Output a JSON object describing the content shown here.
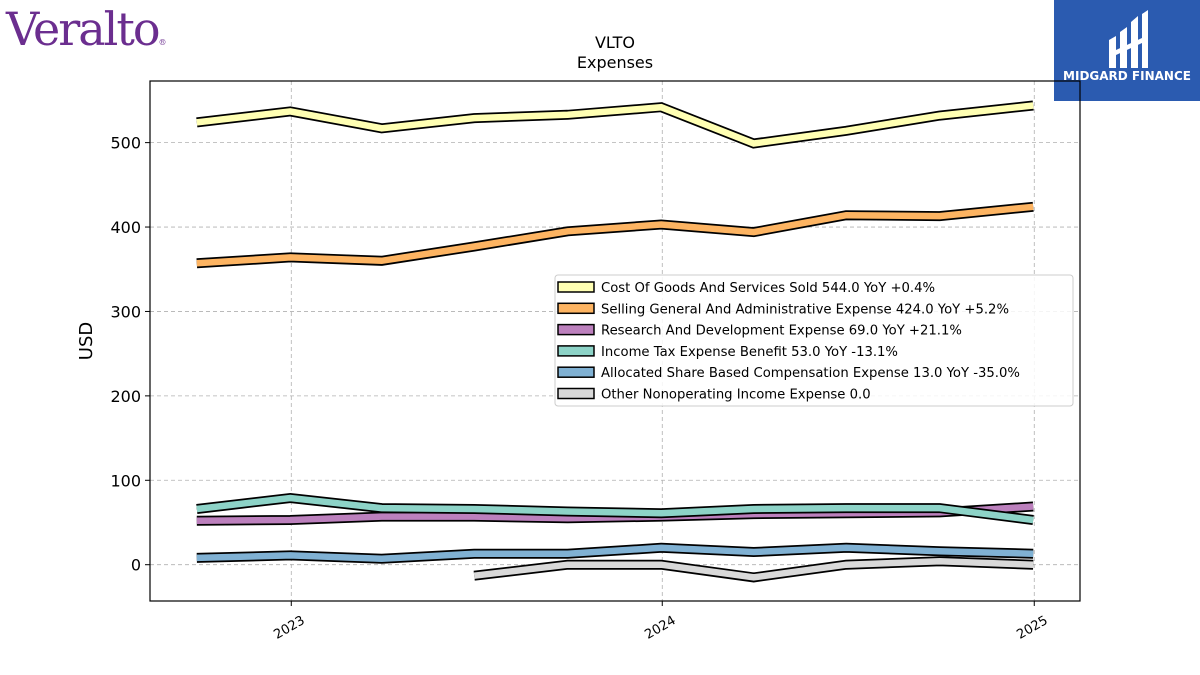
{
  "logos": {
    "left_text": "Veralto",
    "left_tm": "®",
    "right_text": "MIDGARD FINANCE"
  },
  "colors": {
    "brand_left": "#6b2e8f",
    "brand_right_bg": "#2b5bb0"
  },
  "chart_data": {
    "type": "line",
    "title": "VLTO",
    "subtitle": "Expenses",
    "ylabel": "USD",
    "xlabel": "",
    "x_ticks": [
      "2023",
      "2024",
      "2025"
    ],
    "y_ticks": [
      0,
      100,
      200,
      300,
      400,
      500
    ],
    "ylim": [
      -43,
      573
    ],
    "xlim": [
      "2022-08-15",
      "2025-02-15"
    ],
    "grid": true,
    "legend_position": "center-right",
    "x": [
      "2022-09-30",
      "2022-12-31",
      "2023-03-31",
      "2023-06-30",
      "2023-09-30",
      "2023-12-31",
      "2024-03-31",
      "2024-06-30",
      "2024-09-30",
      "2024-12-31"
    ],
    "series": [
      {
        "name": "Cost Of Goods And Services Sold",
        "legend_value": "544.0",
        "legend_yoy": "YoY +0.4%",
        "color": "#ffffb3",
        "values": [
          524,
          537,
          517,
          529,
          533,
          542,
          499,
          514,
          532,
          544
        ]
      },
      {
        "name": "Selling General And Administrative Expense",
        "legend_value": "424.0",
        "legend_yoy": "YoY +5.2%",
        "color": "#fdb462",
        "values": [
          357,
          364,
          360,
          377,
          395,
          403,
          394,
          414,
          413,
          424
        ]
      },
      {
        "name": "Research And Development Expense",
        "legend_value": "69.0",
        "legend_yoy": "YoY +21.1%",
        "color": "#bc80bd",
        "values": [
          52,
          53,
          57,
          57,
          55,
          57,
          60,
          61,
          62,
          69
        ]
      },
      {
        "name": "Income Tax Expense Benefit",
        "legend_value": "53.0",
        "legend_yoy": "YoY -13.1%",
        "color": "#8dd3c7",
        "values": [
          66,
          79,
          67,
          66,
          63,
          61,
          66,
          67,
          67,
          53
        ]
      },
      {
        "name": "Allocated Share Based Compensation Expense",
        "legend_value": "13.0",
        "legend_yoy": "YoY -35.0%",
        "color": "#80b1d3",
        "values": [
          8,
          11,
          7,
          13,
          13,
          20,
          15,
          20,
          16,
          13
        ]
      },
      {
        "name": "Other Nonoperating Income Expense",
        "legend_value": "0.0",
        "legend_yoy": "",
        "color": "#d9d9d9",
        "values": [
          null,
          null,
          null,
          -13,
          0,
          0,
          -15,
          0,
          4,
          0
        ]
      }
    ]
  }
}
